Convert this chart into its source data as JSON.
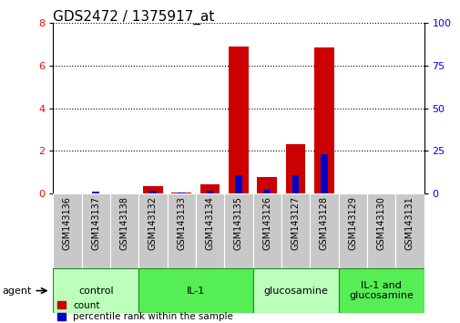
{
  "title": "GDS2472 / 1375917_at",
  "samples": [
    "GSM143136",
    "GSM143137",
    "GSM143138",
    "GSM143132",
    "GSM143133",
    "GSM143134",
    "GSM143135",
    "GSM143126",
    "GSM143127",
    "GSM143128",
    "GSM143129",
    "GSM143130",
    "GSM143131"
  ],
  "count_values": [
    0.0,
    0.0,
    0.0,
    0.35,
    0.05,
    0.45,
    6.9,
    0.8,
    2.3,
    6.85,
    0.0,
    0.0,
    0.0
  ],
  "percentile_values": [
    0.0,
    1.5,
    0.0,
    1.8,
    0.5,
    1.8,
    11.0,
    2.5,
    11.0,
    23.0,
    0.0,
    0.0,
    0.0
  ],
  "groups": [
    {
      "label": "control",
      "start": 0,
      "end": 3,
      "color": "#bbffbb"
    },
    {
      "label": "IL-1",
      "start": 3,
      "end": 7,
      "color": "#55ee55"
    },
    {
      "label": "glucosamine",
      "start": 7,
      "end": 10,
      "color": "#bbffbb"
    },
    {
      "label": "IL-1 and\nglucosamine",
      "start": 10,
      "end": 13,
      "color": "#55ee55"
    }
  ],
  "count_color": "#cc0000",
  "percentile_color": "#0000cc",
  "ylim_left": [
    0,
    8
  ],
  "ylim_right": [
    0,
    100
  ],
  "yticks_left": [
    0,
    2,
    4,
    6,
    8
  ],
  "yticks_right": [
    0,
    25,
    50,
    75,
    100
  ],
  "agent_label": "agent",
  "legend_count": "count",
  "legend_pct": "percentile rank within the sample",
  "title_fontsize": 11,
  "tick_fontsize": 7,
  "label_fontsize": 8
}
